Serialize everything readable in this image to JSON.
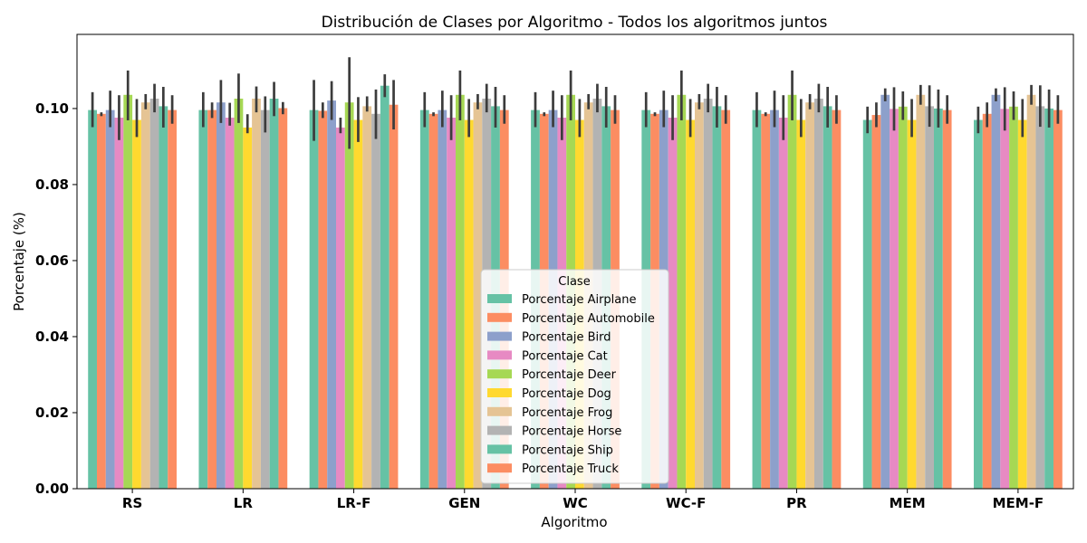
{
  "chart_data": {
    "type": "bar",
    "title": "Distribución de Clases por Algoritmo - Todos los algoritmos juntos",
    "xlabel": "Algoritmo",
    "ylabel": "Porcentaje (%)",
    "ylim": [
      0,
      0.1195
    ],
    "yticks": [
      "0.00",
      "0.02",
      "0.04",
      "0.06",
      "0.08",
      "0.10"
    ],
    "ytick_values": [
      0,
      0.02,
      0.04,
      0.06,
      0.08,
      0.1
    ],
    "categories": [
      "RS",
      "LR",
      "LR-F",
      "GEN",
      "WC",
      "WC-F",
      "PR",
      "MEM",
      "MEM-F"
    ],
    "legend": {
      "title": "Clase",
      "position": "lower center"
    },
    "grid": false,
    "series": [
      {
        "name": "Porcentaje Airplane",
        "color": "#66c2a5",
        "values": [
          0.0996,
          0.0996,
          0.0996,
          0.0996,
          0.0996,
          0.0996,
          0.0996,
          0.097,
          0.097
        ],
        "err": [
          [
            0.0951,
            0.1043
          ],
          [
            0.0951,
            0.1043
          ],
          [
            0.0915,
            0.1075
          ],
          [
            0.0951,
            0.1043
          ],
          [
            0.0951,
            0.1043
          ],
          [
            0.0951,
            0.1043
          ],
          [
            0.0951,
            0.1043
          ],
          [
            0.0935,
            0.1005
          ],
          [
            0.0935,
            0.1005
          ]
        ]
      },
      {
        "name": "Porcentaje Automobile",
        "color": "#fc8d62",
        "values": [
          0.0986,
          0.0996,
          0.0994,
          0.0986,
          0.0986,
          0.0986,
          0.0986,
          0.0983,
          0.0986
        ],
        "err": [
          [
            0.098,
            0.099
          ],
          [
            0.0975,
            0.1016
          ],
          [
            0.0975,
            0.1016
          ],
          [
            0.098,
            0.099
          ],
          [
            0.098,
            0.099
          ],
          [
            0.098,
            0.099
          ],
          [
            0.098,
            0.099
          ],
          [
            0.0951,
            0.1016
          ],
          [
            0.0951,
            0.1016
          ]
        ]
      },
      {
        "name": "Porcentaje Bird",
        "color": "#8da0cb",
        "values": [
          0.0996,
          0.1016,
          0.1021,
          0.0996,
          0.0996,
          0.0996,
          0.0996,
          0.1036,
          0.1036
        ],
        "err": [
          [
            0.0951,
            0.1047
          ],
          [
            0.0962,
            0.1075
          ],
          [
            0.097,
            0.1072
          ],
          [
            0.0951,
            0.1047
          ],
          [
            0.0951,
            0.1047
          ],
          [
            0.0951,
            0.1047
          ],
          [
            0.0951,
            0.1047
          ],
          [
            0.1019,
            0.1053
          ],
          [
            0.1019,
            0.1053
          ]
        ]
      },
      {
        "name": "Porcentaje Cat",
        "color": "#e78ac3",
        "values": [
          0.0976,
          0.0976,
          0.095,
          0.0976,
          0.0976,
          0.0976,
          0.0976,
          0.0999,
          0.0999
        ],
        "err": [
          [
            0.0917,
            0.1035
          ],
          [
            0.0955,
            0.1015
          ],
          [
            0.0935,
            0.0976
          ],
          [
            0.0917,
            0.1035
          ],
          [
            0.0917,
            0.1035
          ],
          [
            0.0917,
            0.1035
          ],
          [
            0.0917,
            0.1035
          ],
          [
            0.0942,
            0.1056
          ],
          [
            0.0942,
            0.1056
          ]
        ]
      },
      {
        "name": "Porcentaje Deer",
        "color": "#a6d854",
        "values": [
          0.1036,
          0.1026,
          0.1016,
          0.1036,
          0.1036,
          0.1036,
          0.1036,
          0.1005,
          0.1005
        ],
        "err": [
          [
            0.0969,
            0.11
          ],
          [
            0.0962,
            0.1092
          ],
          [
            0.0894,
            0.1135
          ],
          [
            0.0969,
            0.11
          ],
          [
            0.0969,
            0.11
          ],
          [
            0.0969,
            0.11
          ],
          [
            0.0969,
            0.11
          ],
          [
            0.097,
            0.1045
          ],
          [
            0.097,
            0.1045
          ]
        ]
      },
      {
        "name": "Porcentaje Dog",
        "color": "#ffd92f",
        "values": [
          0.097,
          0.095,
          0.097,
          0.097,
          0.097,
          0.097,
          0.097,
          0.097,
          0.097
        ],
        "err": [
          [
            0.0925,
            0.1025
          ],
          [
            0.0935,
            0.0985
          ],
          [
            0.0912,
            0.103
          ],
          [
            0.0925,
            0.1025
          ],
          [
            0.0925,
            0.1025
          ],
          [
            0.0925,
            0.1025
          ],
          [
            0.0925,
            0.1025
          ],
          [
            0.0925,
            0.1025
          ],
          [
            0.0925,
            0.1025
          ]
        ]
      },
      {
        "name": "Porcentaje Frog",
        "color": "#e5c494",
        "values": [
          0.1016,
          0.1026,
          0.1006,
          0.1016,
          0.1016,
          0.1016,
          0.1016,
          0.1036,
          0.1036
        ],
        "err": [
          [
            0.0998,
            0.1038
          ],
          [
            0.099,
            0.1058
          ],
          [
            0.0992,
            0.1032
          ],
          [
            0.0998,
            0.1038
          ],
          [
            0.0998,
            0.1038
          ],
          [
            0.0998,
            0.1038
          ],
          [
            0.0998,
            0.1038
          ],
          [
            0.101,
            0.1062
          ],
          [
            0.101,
            0.1062
          ]
        ]
      },
      {
        "name": "Porcentaje Horse",
        "color": "#b3b3b3",
        "values": [
          0.1026,
          0.0996,
          0.0986,
          0.1026,
          0.1026,
          0.1026,
          0.1026,
          0.1006,
          0.1006
        ],
        "err": [
          [
            0.099,
            0.1065
          ],
          [
            0.0937,
            0.1032
          ],
          [
            0.092,
            0.105
          ],
          [
            0.099,
            0.1065
          ],
          [
            0.099,
            0.1065
          ],
          [
            0.099,
            0.1065
          ],
          [
            0.099,
            0.1065
          ],
          [
            0.0952,
            0.1061
          ],
          [
            0.0952,
            0.1061
          ]
        ]
      },
      {
        "name": "Porcentaje Ship",
        "color": "#66c2a5",
        "values": [
          0.1006,
          0.1026,
          0.106,
          0.1006,
          0.1006,
          0.1006,
          0.1006,
          0.1,
          0.1
        ],
        "err": [
          [
            0.095,
            0.1057
          ],
          [
            0.098,
            0.107
          ],
          [
            0.103,
            0.109
          ],
          [
            0.095,
            0.1057
          ],
          [
            0.095,
            0.1057
          ],
          [
            0.095,
            0.1057
          ],
          [
            0.095,
            0.1057
          ],
          [
            0.095,
            0.105
          ],
          [
            0.095,
            0.105
          ]
        ]
      },
      {
        "name": "Porcentaje Truck",
        "color": "#fc8d62",
        "values": [
          0.0996,
          0.1001,
          0.101,
          0.0996,
          0.0996,
          0.0996,
          0.0996,
          0.0996,
          0.0996
        ],
        "err": [
          [
            0.096,
            0.1035
          ],
          [
            0.0985,
            0.1017
          ],
          [
            0.0945,
            0.1075
          ],
          [
            0.096,
            0.1035
          ],
          [
            0.096,
            0.1035
          ],
          [
            0.096,
            0.1035
          ],
          [
            0.096,
            0.1035
          ],
          [
            0.096,
            0.1035
          ],
          [
            0.096,
            0.1035
          ]
        ]
      }
    ]
  }
}
